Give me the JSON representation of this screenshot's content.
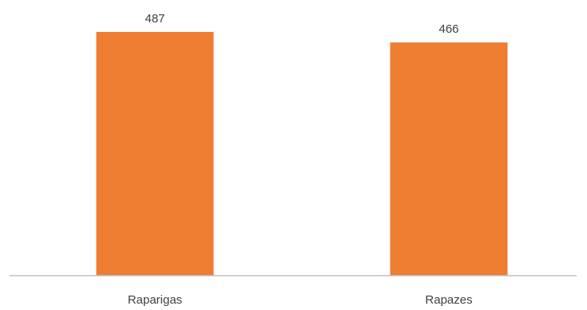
{
  "colors": {
    "bar": "#ED7D31",
    "axis": "#BFBFBF",
    "text": "#404040",
    "background": "#FFFFFF"
  },
  "chart_data": {
    "type": "bar",
    "categories": [
      "Raparigas",
      "Rapazes"
    ],
    "values": [
      487,
      466
    ],
    "data_labels": [
      "487",
      "466"
    ],
    "ylim": [
      0,
      487
    ],
    "grid": false,
    "legend": "none"
  }
}
